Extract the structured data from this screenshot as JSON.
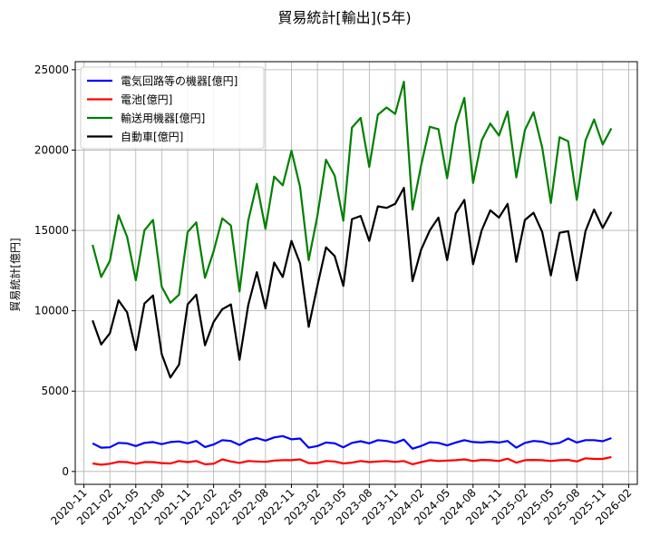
{
  "chart_data": {
    "type": "line",
    "title": "貿易統計[輸出](5年)",
    "xlabel": "",
    "ylabel": "貿易統計[億円]",
    "ylim": [
      -800,
      25500
    ],
    "yticks": [
      0,
      5000,
      10000,
      15000,
      20000,
      25000
    ],
    "xlim": [
      "2020-10",
      "2026-03"
    ],
    "xticks": [
      "2020-11",
      "2021-02",
      "2021-05",
      "2021-08",
      "2021-11",
      "2022-02",
      "2022-05",
      "2022-08",
      "2022-11",
      "2023-02",
      "2023-05",
      "2023-08",
      "2023-11",
      "2024-02",
      "2024-05",
      "2024-08",
      "2024-11",
      "2025-02",
      "2025-05",
      "2025-08",
      "2025-11",
      "2026-02"
    ],
    "grid": true,
    "legend": "top-left",
    "start_month": "2020-12",
    "series": [
      {
        "name": "電気回路等の機器[億円]",
        "color": "#0000ff",
        "values": [
          1750,
          1480,
          1500,
          1780,
          1750,
          1580,
          1780,
          1830,
          1700,
          1830,
          1870,
          1750,
          1900,
          1520,
          1680,
          1950,
          1900,
          1650,
          1950,
          2080,
          1920,
          2120,
          2200,
          2000,
          2050,
          1480,
          1580,
          1800,
          1750,
          1500,
          1780,
          1880,
          1750,
          1950,
          1900,
          1780,
          1980,
          1420,
          1580,
          1820,
          1780,
          1620,
          1800,
          1950,
          1830,
          1800,
          1850,
          1800,
          1900,
          1480,
          1780,
          1900,
          1850,
          1700,
          1780,
          2050,
          1800,
          1950,
          1950,
          1880,
          2080
        ]
      },
      {
        "name": "電池[億円]",
        "color": "#ff0000",
        "values": [
          500,
          420,
          480,
          600,
          580,
          480,
          580,
          580,
          520,
          500,
          650,
          580,
          650,
          450,
          480,
          750,
          620,
          530,
          650,
          620,
          600,
          680,
          700,
          700,
          750,
          520,
          520,
          650,
          620,
          500,
          550,
          650,
          580,
          620,
          650,
          600,
          650,
          450,
          580,
          700,
          650,
          680,
          700,
          750,
          650,
          720,
          700,
          650,
          800,
          550,
          700,
          720,
          700,
          650,
          700,
          720,
          620,
          820,
          780,
          780,
          900
        ]
      },
      {
        "name": "輸送用機器[億円]",
        "color": "#008000",
        "values": [
          14100,
          12100,
          13100,
          15950,
          14600,
          11900,
          15000,
          15650,
          11500,
          10500,
          11000,
          14900,
          15500,
          12050,
          13700,
          15750,
          15300,
          11200,
          15600,
          17900,
          15100,
          18350,
          17800,
          19950,
          17700,
          13150,
          15900,
          19400,
          18400,
          15600,
          21400,
          22000,
          18950,
          22200,
          22650,
          22250,
          24250,
          16300,
          19050,
          21450,
          21300,
          18250,
          21600,
          23250,
          17950,
          20600,
          21650,
          20900,
          22400,
          18300,
          21250,
          22350,
          20150,
          16700,
          20800,
          20550,
          16900,
          20600,
          21900,
          20350,
          21350
        ]
      },
      {
        "name": "自動車[億円]",
        "color": "#000000",
        "values": [
          9400,
          7900,
          8600,
          10650,
          9900,
          7550,
          10450,
          10950,
          7300,
          5850,
          6650,
          10400,
          11000,
          7850,
          9300,
          10100,
          10400,
          6950,
          10350,
          12400,
          10150,
          13000,
          12100,
          14350,
          12950,
          9000,
          11550,
          13950,
          13400,
          11550,
          15700,
          15900,
          14350,
          16500,
          16400,
          16650,
          17650,
          11850,
          13800,
          15000,
          15800,
          13150,
          16050,
          16900,
          12900,
          15000,
          16250,
          15800,
          16650,
          13050,
          15650,
          16100,
          14900,
          12200,
          14850,
          14950,
          11900,
          14950,
          16300,
          15150,
          16150
        ]
      }
    ]
  }
}
